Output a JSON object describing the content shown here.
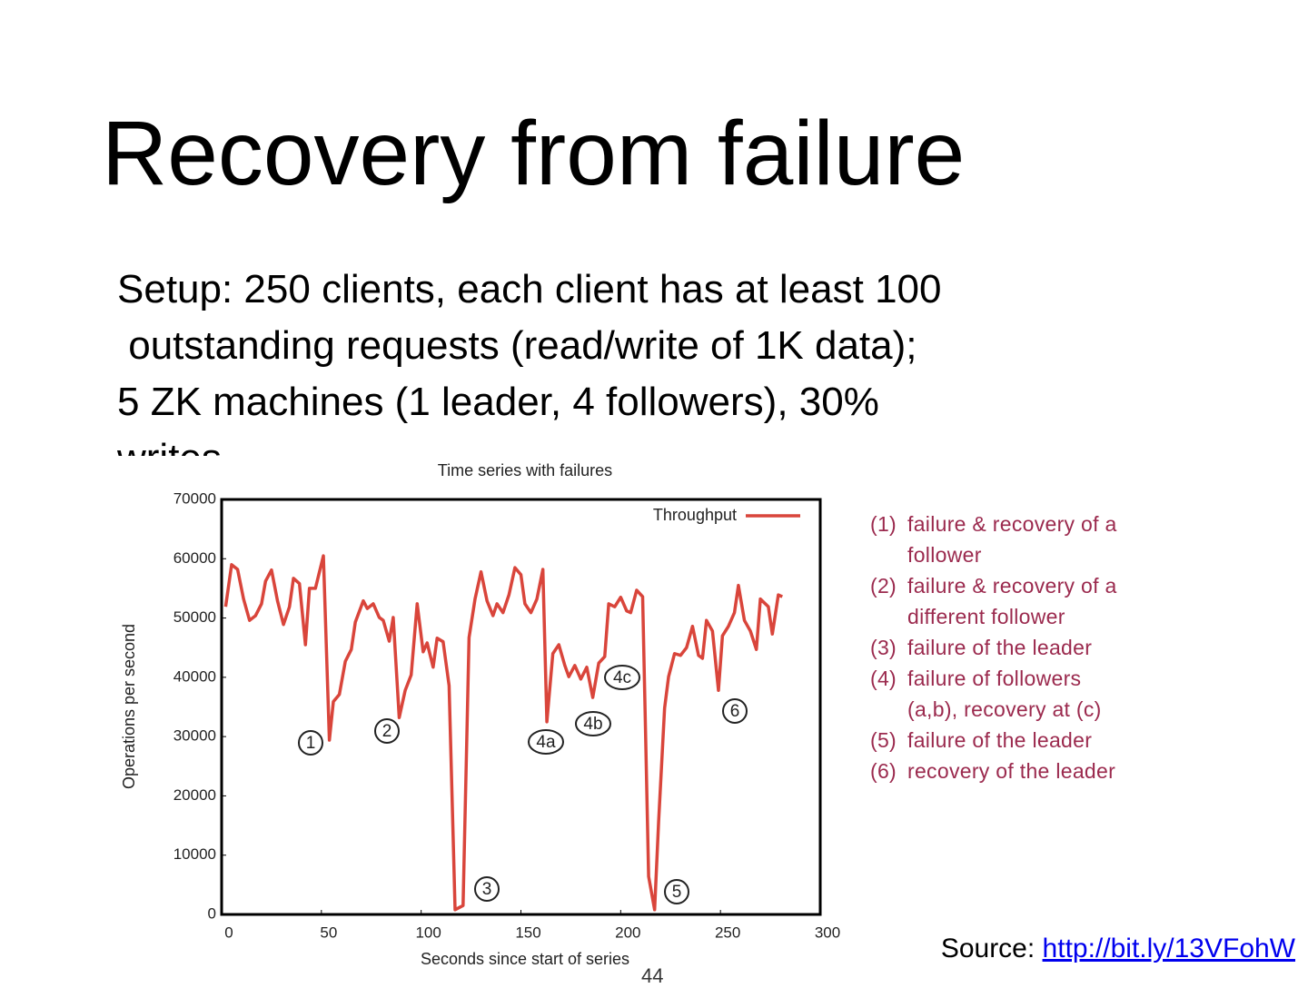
{
  "title": "Recovery from failure",
  "setup_lines": [
    "Setup: 250 clients, each client has at least 100",
    " outstanding requests (read/write of 1K data);",
    "5 ZK machines (1 leader, 4 followers), 30%",
    "writes"
  ],
  "chart_data": {
    "type": "line",
    "title": "Time series with failures",
    "x_label": "Seconds since start of series",
    "y_label": "Operations per second",
    "x": [
      2,
      5,
      8,
      11,
      14,
      17,
      20,
      22,
      25,
      28,
      31,
      34,
      36,
      39,
      42,
      44,
      47,
      51,
      54,
      56,
      59,
      62,
      65,
      67,
      71,
      73,
      76,
      79,
      81,
      84,
      86,
      89,
      92,
      95,
      98,
      101,
      103,
      106,
      108,
      111,
      114,
      117,
      121,
      124,
      127,
      130,
      133,
      136,
      138,
      141,
      144,
      147,
      150,
      152,
      155,
      158,
      161,
      163,
      166,
      169,
      172,
      174,
      177,
      180,
      183,
      186,
      189,
      192,
      194,
      197,
      200,
      203,
      205,
      208,
      211,
      214,
      217,
      219,
      222,
      224,
      227,
      230,
      233,
      236,
      239,
      241,
      243,
      246,
      249,
      251,
      254,
      257,
      259,
      262,
      265,
      268,
      270,
      274,
      276,
      279,
      281
    ],
    "series": [
      {
        "name": "Throughput",
        "color": "#d9453b",
        "values": [
          51900,
          59000,
          58200,
          53200,
          49600,
          50400,
          52400,
          56200,
          58100,
          52900,
          48900,
          51900,
          56700,
          55800,
          45500,
          55000,
          55000,
          60500,
          29400,
          35900,
          37100,
          42700,
          44700,
          49300,
          52900,
          51600,
          52400,
          50100,
          49600,
          46100,
          50100,
          33200,
          37800,
          40400,
          52400,
          44300,
          45800,
          41700,
          46600,
          46000,
          38600,
          800,
          1500,
          46700,
          53200,
          57800,
          52900,
          50400,
          52400,
          50900,
          53900,
          58500,
          57300,
          52400,
          50900,
          53200,
          58200,
          32500,
          44000,
          45500,
          42000,
          40100,
          42000,
          39700,
          41700,
          36600,
          42400,
          43500,
          52400,
          51900,
          53500,
          51200,
          50900,
          54700,
          53600,
          6400,
          800,
          15600,
          34800,
          40100,
          44000,
          43700,
          45000,
          48600,
          43700,
          43200,
          49600,
          47800,
          37800,
          47000,
          48600,
          50900,
          55500,
          49600,
          47800,
          44700,
          53200,
          51900,
          47300,
          53900,
          53600
        ]
      }
    ],
    "xlim": [
      0,
      300
    ],
    "xticks": [
      0,
      50,
      100,
      150,
      200,
      250,
      300
    ],
    "ylim": [
      0,
      70000
    ],
    "yticks": [
      0,
      10000,
      20000,
      30000,
      40000,
      50000,
      60000,
      70000
    ],
    "legend": "upper right",
    "annotations": [
      "1",
      "2",
      "3",
      "4a",
      "4b",
      "4c",
      "5",
      "6"
    ]
  },
  "notes": [
    [
      "(1)",
      "failure & recovery of a follower"
    ],
    [
      "(2)",
      "failure & recovery of a different follower"
    ],
    [
      "(3)",
      " failure of the leader"
    ],
    [
      "(4)",
      "failure of followers (a,b), recovery at (c)"
    ],
    [
      "(5)",
      " failure of the leader"
    ],
    [
      "(6)",
      "recovery of the leader"
    ]
  ],
  "source_label": "Source: ",
  "source_link": "http://bit.ly/13VFohW",
  "page_number": "44"
}
